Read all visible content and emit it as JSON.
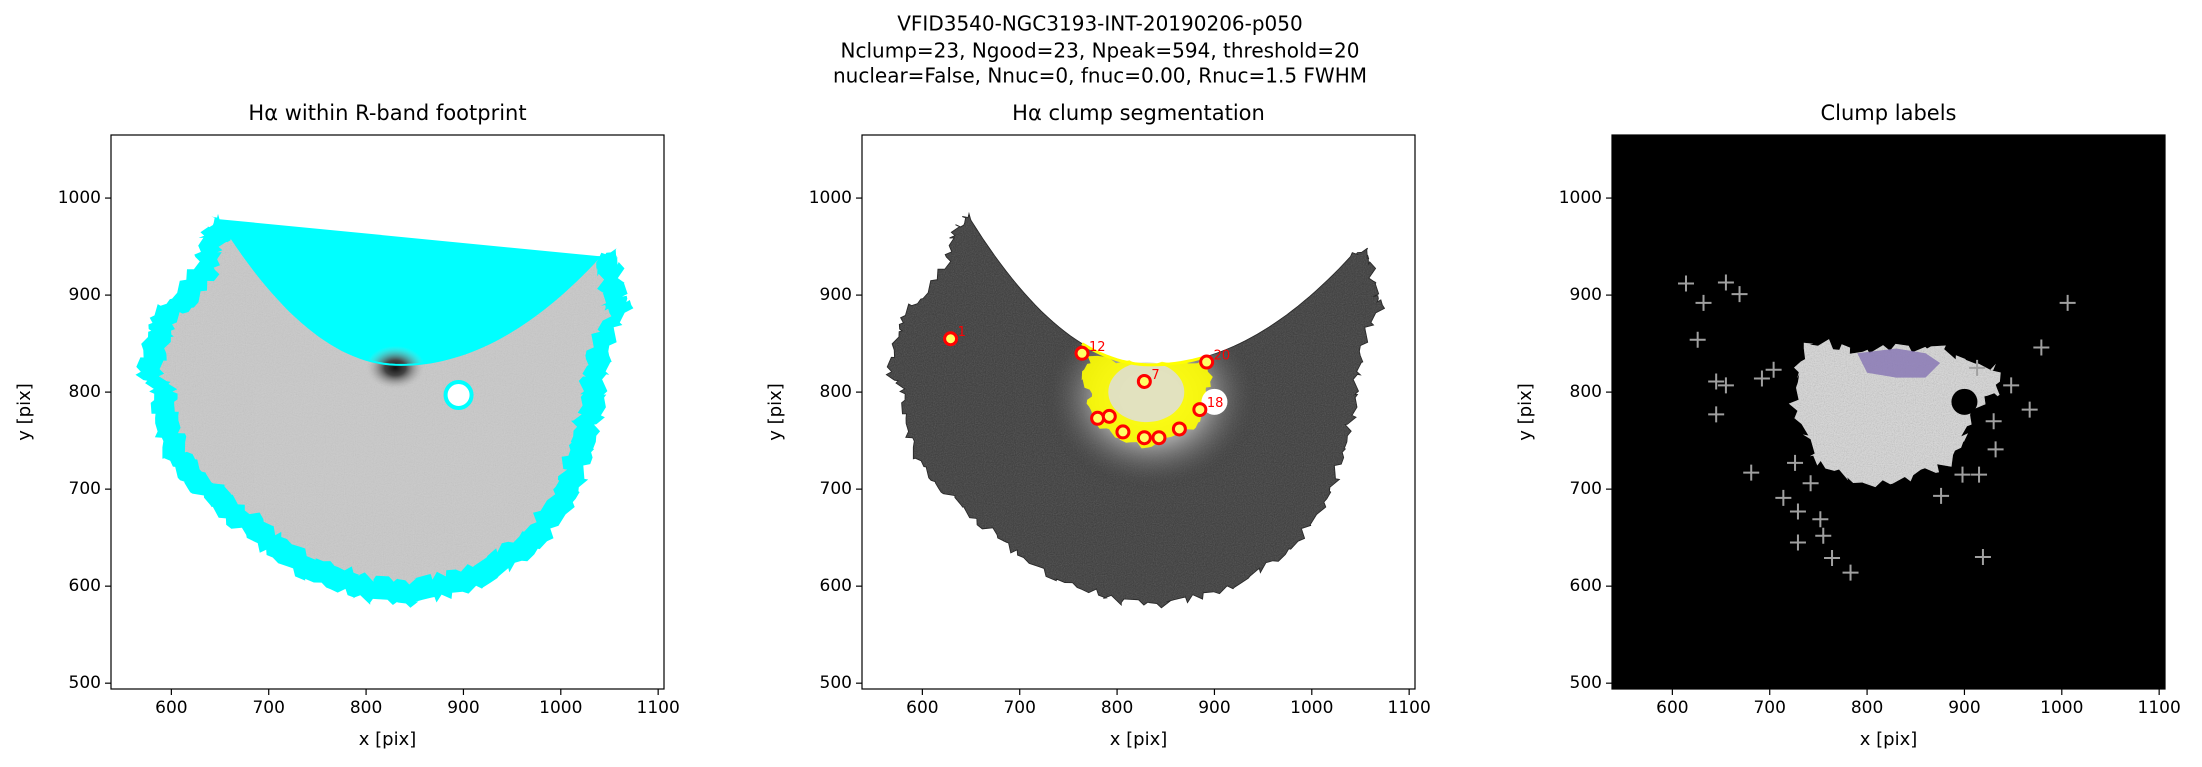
{
  "suptitle": [
    "VFID3540-NGC3193-INT-20190206-p050",
    "Nclump=23, Ngood=23, Npeak=594, threshold=20",
    "nuclear=False, Nnuc=0, fnuc=0.00, Rnuc=1.5 FWHM"
  ],
  "chart_data": [
    {
      "type": "image",
      "title": "Hα within R-band footprint",
      "xlabel": "x [pix]",
      "ylabel": "y [pix]",
      "xlim": [
        538,
        1106
      ],
      "ylim": [
        494,
        1065
      ],
      "xticks": [
        600,
        700,
        800,
        900,
        1000,
        1100
      ],
      "yticks": [
        500,
        600,
        700,
        800,
        900,
        1000
      ],
      "contour_color": "#00ffff"
    },
    {
      "type": "image",
      "title": "Hα clump segmentation",
      "xlabel": "x [pix]",
      "ylabel": "y [pix]",
      "xlim": [
        538,
        1106
      ],
      "ylim": [
        494,
        1065
      ],
      "xticks": [
        600,
        700,
        800,
        900,
        1000,
        1100
      ],
      "yticks": [
        500,
        600,
        700,
        800,
        900,
        1000
      ],
      "mask_color": "#ffff00",
      "marker_color": "#ff0000",
      "clumps": {
        "x": [
          629,
          764,
          892,
          828,
          885,
          780,
          806,
          828,
          843,
          864,
          792
        ],
        "y": [
          855,
          840,
          831,
          811,
          782,
          773,
          759,
          753,
          753,
          762,
          775
        ],
        "labels": [
          "1",
          "12",
          "20",
          "7",
          "18",
          null,
          null,
          null,
          null,
          null,
          null
        ]
      }
    },
    {
      "type": "image",
      "title": "Clump labels",
      "xlabel": "x [pix]",
      "ylabel": "y [pix]",
      "xlim": [
        538,
        1106
      ],
      "ylim": [
        494,
        1065
      ],
      "xticks": [
        600,
        700,
        800,
        900,
        1000,
        1100
      ],
      "yticks": [
        500,
        600,
        700,
        800,
        900,
        1000
      ],
      "background": "#000000",
      "marker_color": "#a0a0a0",
      "peaks": {
        "x": [
          614,
          632,
          655,
          669,
          626,
          645,
          655,
          645,
          692,
          704,
          681,
          714,
          726,
          729,
          729,
          752,
          755,
          764,
          783,
          742,
          876,
          898,
          915,
          919,
          1006,
          979,
          967,
          948,
          930,
          913,
          932
        ],
        "y": [
          912,
          892,
          913,
          901,
          854,
          811,
          807,
          777,
          814,
          823,
          717,
          691,
          727,
          677,
          645,
          669,
          652,
          629,
          614,
          706,
          693,
          715,
          715,
          630,
          892,
          846,
          782,
          807,
          770,
          825,
          741
        ]
      }
    }
  ]
}
